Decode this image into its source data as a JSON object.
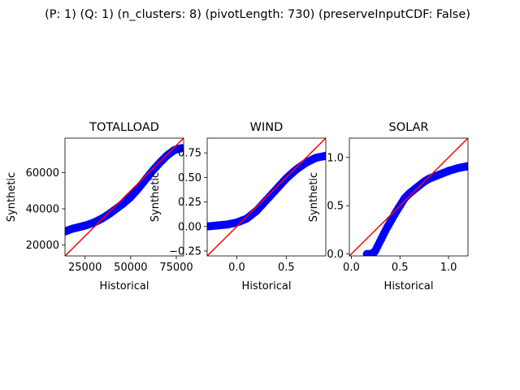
{
  "figure": {
    "suptitle": "(P: 1) (Q: 1) (n_clusters: 8) (pivotLength: 730) (preserveInputCDF: False)"
  },
  "chart_data": [
    {
      "type": "scatter",
      "title": "TOTALLOAD",
      "xlabel": "Historical",
      "ylabel": "Synthetic",
      "xlim": [
        14000,
        79000
      ],
      "ylim": [
        14000,
        79000
      ],
      "xticks": [
        25000,
        50000,
        75000
      ],
      "yticks": [
        20000,
        40000,
        60000
      ],
      "xtick_labels": [
        "25000",
        "50000",
        "75000"
      ],
      "ytick_labels": [
        "20000",
        "40000",
        "60000"
      ],
      "reference_line": "y = x",
      "series": [
        {
          "color": "#0000ff",
          "points": [
            [
              14000,
              27500
            ],
            [
              18000,
              29000
            ],
            [
              22000,
              30000
            ],
            [
              26000,
              31000
            ],
            [
              30000,
              32500
            ],
            [
              34000,
              34500
            ],
            [
              38000,
              37000
            ],
            [
              42000,
              40000
            ],
            [
              46000,
              43000
            ],
            [
              50000,
              46500
            ],
            [
              54000,
              51000
            ],
            [
              58000,
              56000
            ],
            [
              62000,
              61000
            ],
            [
              66000,
              65500
            ],
            [
              70000,
              69500
            ],
            [
              74000,
              72500
            ],
            [
              78000,
              73500
            ]
          ]
        }
      ],
      "line_color": "#ff0000"
    },
    {
      "type": "scatter",
      "title": "WIND",
      "xlabel": "Historical",
      "ylabel": "Synthetic",
      "xlim": [
        -0.3,
        0.9
      ],
      "ylim": [
        -0.3,
        0.9
      ],
      "xticks": [
        0.0,
        0.5
      ],
      "yticks": [
        -0.25,
        0.0,
        0.25,
        0.5,
        0.75
      ],
      "xtick_labels": [
        "0.0",
        "0.5"
      ],
      "ytick_labels": [
        "−0.25",
        "0.00",
        "0.25",
        "0.50",
        "0.75"
      ],
      "reference_line": "y = x",
      "series": [
        {
          "color": "#0000ff",
          "points": [
            [
              -0.3,
              0.0
            ],
            [
              -0.2,
              0.01
            ],
            [
              -0.1,
              0.02
            ],
            [
              0.0,
              0.04
            ],
            [
              0.1,
              0.08
            ],
            [
              0.2,
              0.16
            ],
            [
              0.3,
              0.27
            ],
            [
              0.4,
              0.38
            ],
            [
              0.5,
              0.49
            ],
            [
              0.6,
              0.58
            ],
            [
              0.7,
              0.65
            ],
            [
              0.8,
              0.7
            ],
            [
              0.9,
              0.72
            ]
          ]
        }
      ],
      "line_color": "#ff0000"
    },
    {
      "type": "scatter",
      "title": "SOLAR",
      "xlabel": "Historical",
      "ylabel": "Synthetic",
      "xlim": [
        -0.02,
        1.2
      ],
      "ylim": [
        -0.02,
        1.2
      ],
      "xticks": [
        0.0,
        0.5,
        1.0
      ],
      "yticks": [
        0.0,
        0.5,
        1.0
      ],
      "xtick_labels": [
        "0.0",
        "0.5",
        "1.0"
      ],
      "ytick_labels": [
        "0.0",
        "0.5",
        "1.0"
      ],
      "reference_line": "y = x",
      "series": [
        {
          "color": "#0000ff",
          "points": [
            [
              0.16,
              0.0
            ],
            [
              0.2,
              0.0
            ],
            [
              0.24,
              0.02
            ],
            [
              0.28,
              0.1
            ],
            [
              0.32,
              0.18
            ],
            [
              0.36,
              0.26
            ],
            [
              0.4,
              0.33
            ],
            [
              0.45,
              0.42
            ],
            [
              0.5,
              0.5
            ],
            [
              0.55,
              0.58
            ],
            [
              0.6,
              0.63
            ],
            [
              0.65,
              0.67
            ],
            [
              0.7,
              0.71
            ],
            [
              0.75,
              0.75
            ],
            [
              0.8,
              0.78
            ],
            [
              0.9,
              0.82
            ],
            [
              1.0,
              0.86
            ],
            [
              1.1,
              0.89
            ],
            [
              1.2,
              0.91
            ]
          ]
        }
      ],
      "line_color": "#ff0000"
    }
  ]
}
